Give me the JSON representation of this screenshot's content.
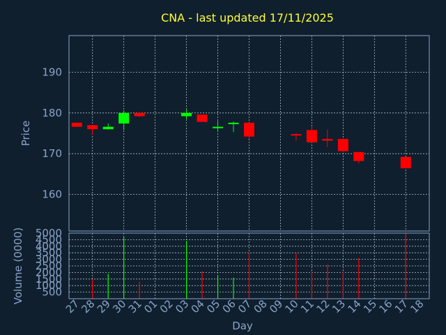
{
  "chart_data": {
    "type": "candlestick",
    "title": "CNA - last updated 17/11/2025",
    "ylabel_price": "Price",
    "ylabel_volume": "Volume (0000)",
    "xlabel": "Day",
    "price_ticks": [
      160,
      170,
      180,
      190
    ],
    "price_ylim": [
      151,
      199
    ],
    "volume_ticks": [
      500,
      1000,
      1500,
      2000,
      2500,
      3000,
      3500,
      4000,
      4500,
      5000
    ],
    "volume_ylim": [
      0,
      5000
    ],
    "x_tick_labels": [
      "27",
      "28",
      "29",
      "30",
      "31",
      "01",
      "02",
      "03",
      "04",
      "05",
      "06",
      "07",
      "08",
      "09",
      "10",
      "11",
      "12",
      "13",
      "14",
      "15",
      "16",
      "17",
      "18"
    ],
    "up_color": "#00ff00",
    "down_color": "#ff0000",
    "background": "#0f1f2e",
    "candles": [
      {
        "day": "27",
        "open": 177.6,
        "close": 176.6,
        "high": 177.6,
        "low": 176.6,
        "volume": 0
      },
      {
        "day": "28",
        "open": 177.0,
        "close": 176.0,
        "high": 177.0,
        "low": 174.6,
        "volume": 1500
      },
      {
        "day": "29",
        "open": 176.0,
        "close": 176.6,
        "high": 177.4,
        "low": 175.9,
        "volume": 1900
      },
      {
        "day": "30",
        "open": 177.4,
        "close": 180.0,
        "high": 180.6,
        "low": 175.8,
        "volume": 4700
      },
      {
        "day": "31",
        "open": 180.0,
        "close": 179.2,
        "high": 180.2,
        "low": 179.0,
        "volume": 1300
      },
      {
        "day": "03",
        "open": 179.2,
        "close": 180.0,
        "high": 180.8,
        "low": 178.5,
        "volume": 4400
      },
      {
        "day": "04",
        "open": 179.6,
        "close": 177.8,
        "high": 179.6,
        "low": 177.8,
        "volume": 2100
      },
      {
        "day": "05",
        "open": 176.4,
        "close": 176.6,
        "high": 178.0,
        "low": 175.4,
        "volume": 1800
      },
      {
        "day": "06",
        "open": 177.4,
        "close": 177.6,
        "high": 177.9,
        "low": 175.3,
        "volume": 1600
      },
      {
        "day": "07",
        "open": 177.6,
        "close": 174.2,
        "high": 177.6,
        "low": 173.6,
        "volume": 3500
      },
      {
        "day": "10",
        "open": 174.8,
        "close": 174.6,
        "high": 175.1,
        "low": 173.2,
        "volume": 3500
      },
      {
        "day": "11",
        "open": 175.8,
        "close": 172.8,
        "high": 176.6,
        "low": 172.8,
        "volume": 2100
      },
      {
        "day": "12",
        "open": 173.6,
        "close": 173.2,
        "high": 175.9,
        "low": 171.6,
        "volume": 2600
      },
      {
        "day": "13",
        "open": 173.6,
        "close": 170.6,
        "high": 173.8,
        "low": 170.6,
        "volume": 2100
      },
      {
        "day": "14",
        "open": 170.4,
        "close": 168.2,
        "high": 170.4,
        "low": 167.6,
        "volume": 3100
      },
      {
        "day": "17",
        "open": 169.2,
        "close": 166.4,
        "high": 169.2,
        "low": 166.4,
        "volume": 5000
      }
    ]
  }
}
